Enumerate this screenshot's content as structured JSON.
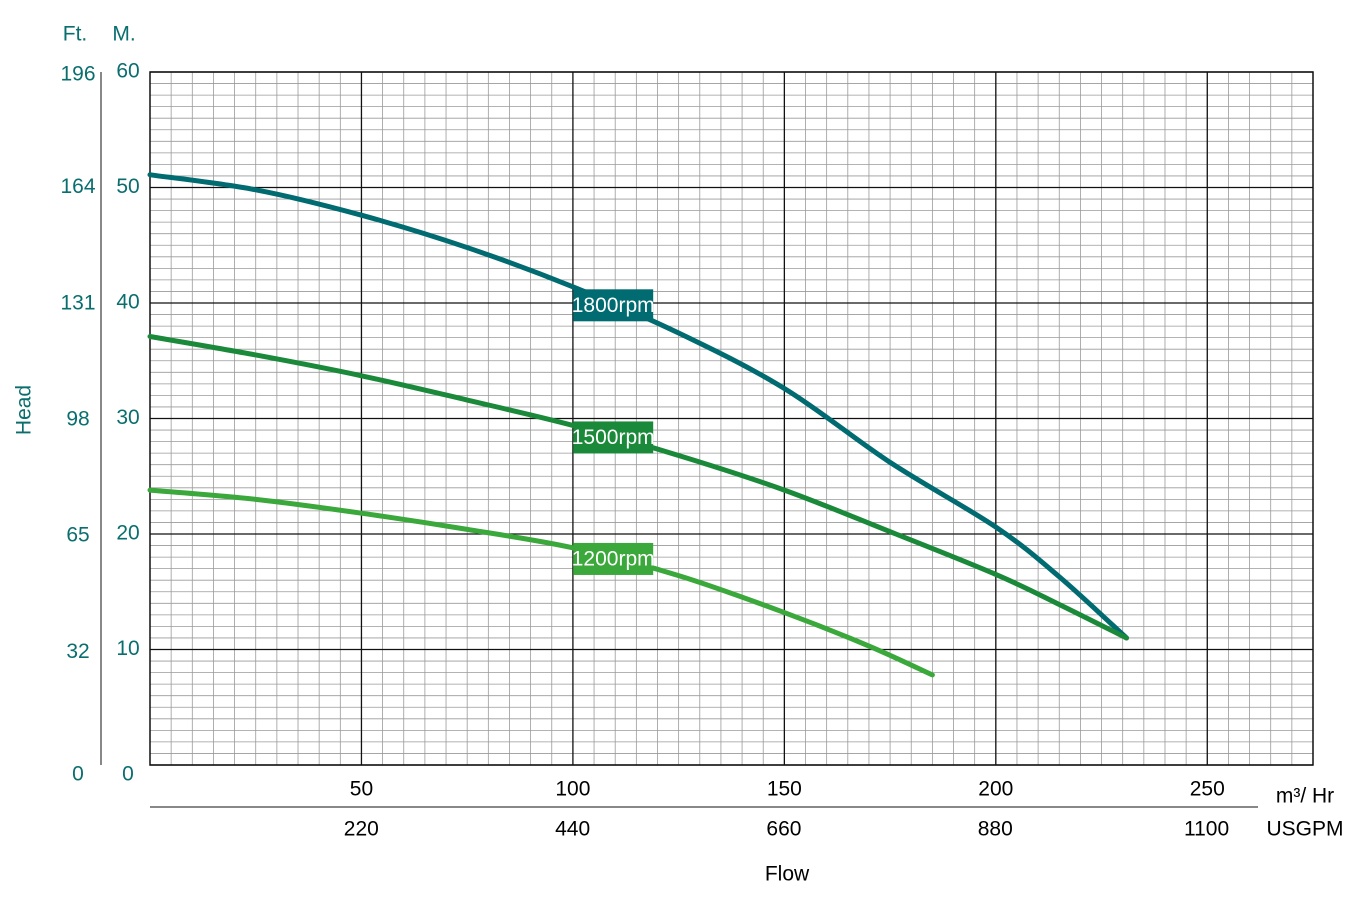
{
  "chart_data": {
    "type": "line",
    "y_label": "Head",
    "y_unit": "M.",
    "y2_unit": "Ft.",
    "x_label": "Flow",
    "x_unit": "m³/ Hr",
    "x2_unit": "USGPM",
    "xlim": [
      0,
      275
    ],
    "xticks": [
      50,
      100,
      150,
      200,
      250
    ],
    "x2lim": [
      0,
      1210.8
    ],
    "x2ticks": [
      220,
      440,
      660,
      880,
      1100
    ],
    "ylim": [
      0,
      60
    ],
    "yticks": [
      0,
      10,
      20,
      30,
      40,
      50,
      60
    ],
    "y2lim": [
      0,
      196.85
    ],
    "y2ticks": [
      0,
      32,
      65,
      98,
      131,
      164,
      196
    ],
    "grid": true,
    "minor_grid": {
      "x": 5,
      "y": 1
    },
    "series": [
      {
        "name": "1800rpm",
        "color": "#006b70",
        "x": [
          0,
          25,
          50,
          75,
          100,
          125,
          150,
          175,
          200,
          215,
          230.9
        ],
        "values": [
          51.1,
          49.8,
          47.6,
          44.8,
          41.4,
          37.4,
          32.6,
          26.2,
          20.6,
          16.3,
          11.0
        ]
      },
      {
        "name": "1500rpm",
        "color": "#1a8a3a",
        "x": [
          0,
          25,
          50,
          75,
          100,
          125,
          150,
          175,
          200,
          215,
          230.9
        ],
        "values": [
          37.1,
          35.5,
          33.7,
          31.6,
          29.4,
          26.8,
          23.8,
          20.2,
          16.5,
          13.9,
          11.0
        ]
      },
      {
        "name": "1200rpm",
        "color": "#3aa83a",
        "x": [
          0,
          25,
          50,
          75,
          100,
          125,
          150,
          170,
          185
        ],
        "values": [
          23.8,
          23.0,
          21.8,
          20.4,
          18.8,
          16.4,
          13.2,
          10.3,
          7.8
        ]
      }
    ]
  }
}
